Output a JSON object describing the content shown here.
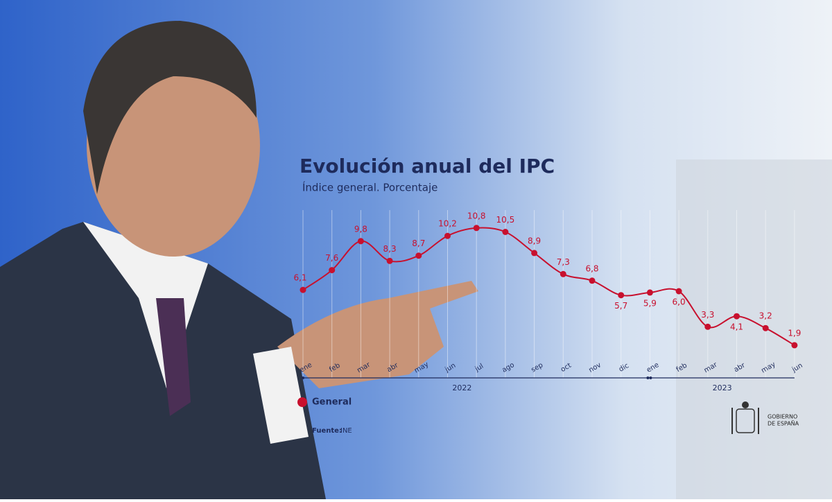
{
  "chart_data": {
    "type": "line",
    "title": "Evolución anual del IPC",
    "subtitle": "Índice general. Porcentaje",
    "categories": [
      "ene",
      "feb",
      "mar",
      "abr",
      "may",
      "jun",
      "jul",
      "ago",
      "sep",
      "oct",
      "nov",
      "dic",
      "ene",
      "feb",
      "mar",
      "abr",
      "may",
      "jun"
    ],
    "years": [
      "2022",
      "2023"
    ],
    "series": [
      {
        "name": "General",
        "color": "#c8102e",
        "values": [
          6.1,
          7.6,
          9.8,
          8.3,
          8.7,
          10.2,
          10.8,
          10.5,
          8.9,
          7.3,
          6.8,
          5.7,
          5.9,
          6.0,
          3.3,
          4.1,
          3.2,
          1.9
        ],
        "value_labels": [
          "6,1",
          "7,6",
          "9,8",
          "8,3",
          "8,7",
          "10,2",
          "10,8",
          "10,5",
          "8,9",
          "7,3",
          "6,8",
          "5,7",
          "5,9",
          "6,0",
          "3,3",
          "4,1",
          "3,2",
          "1,9"
        ]
      }
    ],
    "grid": true
  },
  "source": {
    "label": "Fuente:",
    "value": "INE"
  },
  "logo": [
    "GOBIERNO",
    "DE ESPAÑA"
  ]
}
